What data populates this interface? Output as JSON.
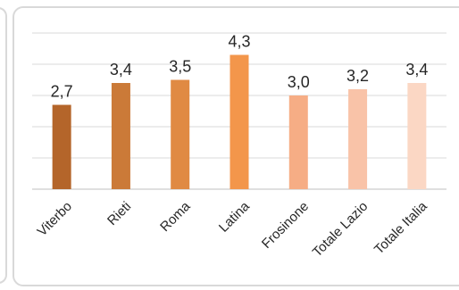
{
  "chart_data": {
    "type": "bar",
    "title": "",
    "xlabel": "",
    "ylabel": "",
    "categories": [
      "Viterbo",
      "Rieti",
      "Roma",
      "Latina",
      "Frosinone",
      "Totale Lazio",
      "Totale Italia"
    ],
    "values": [
      2.7,
      3.4,
      3.5,
      4.3,
      3.0,
      3.2,
      3.4
    ],
    "value_labels": [
      "2,7",
      "3,4",
      "3,5",
      "4,3",
      "3,0",
      "3,2",
      "3,4"
    ],
    "bar_colors": [
      "#b4652a",
      "#cb7a38",
      "#e08a43",
      "#f3964b",
      "#f6ad85",
      "#f9c3a8",
      "#fbd7c4"
    ],
    "ylim": [
      0,
      5
    ],
    "grid": true,
    "legend": "none"
  }
}
